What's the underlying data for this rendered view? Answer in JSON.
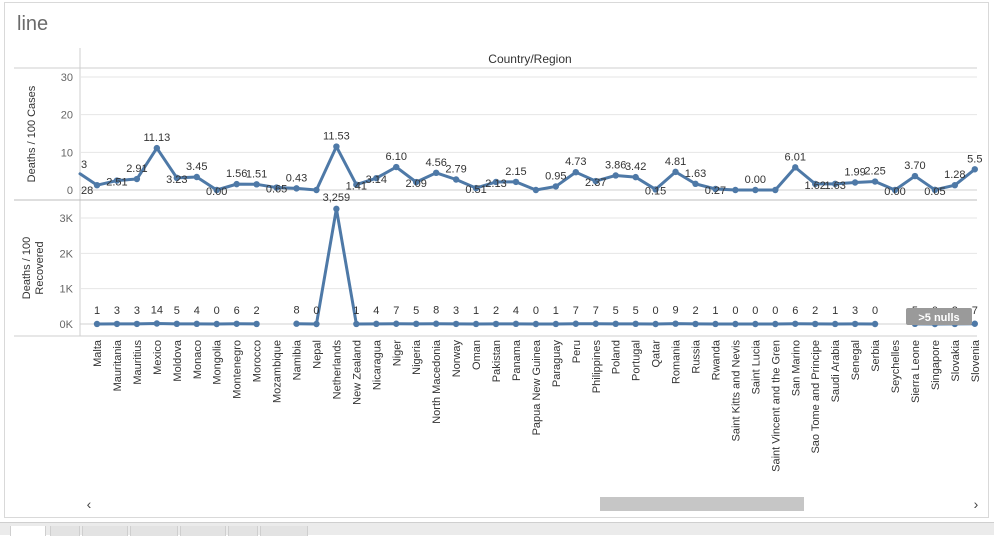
{
  "sheet_title": "line",
  "nulls_indicator": ">5 nulls",
  "colors": {
    "line": "#4e79a7",
    "grid": "#e6e6e6",
    "text": "#333333",
    "axis_text": "#666666"
  },
  "scroll_left_icon": "chevron-left-icon",
  "scroll_right_icon": "chevron-right-icon",
  "chart_data": {
    "type": "line",
    "header": "Country/Region",
    "categories": [
      "Malta",
      "Mauritania",
      "Mauritius",
      "Mexico",
      "Moldova",
      "Monaco",
      "Mongolia",
      "Montenegro",
      "Morocco",
      "Mozambique",
      "Namibia",
      "Nepal",
      "Netherlands",
      "New Zealand",
      "Nicaragua",
      "Niger",
      "Nigeria",
      "North Macedonia",
      "Norway",
      "Oman",
      "Pakistan",
      "Panama",
      "Papua New Guinea",
      "Paraguay",
      "Peru",
      "Philippines",
      "Poland",
      "Portugal",
      "Qatar",
      "Romania",
      "Russia",
      "Rwanda",
      "Saint Kitts and Nevis",
      "Saint Lucia",
      "Saint Vincent and the Gren..",
      "San Marino",
      "Sao Tome and Principe",
      "Saudi Arabia",
      "Senegal",
      "Serbia",
      "Seychelles",
      "Sierra Leone",
      "Singapore",
      "Slovakia",
      "Slovenia"
    ],
    "panes": [
      {
        "ylabel": "Deaths / 100 Cases",
        "ylim": [
          0,
          30
        ],
        "ticks": [
          0,
          10,
          20,
          30
        ],
        "tick_labels": [
          "0",
          "10",
          "20",
          "30"
        ],
        "left_edge_value": 4.3,
        "left_edge_labels": [
          "3",
          "28"
        ],
        "values": [
          1.28,
          2.51,
          2.91,
          11.13,
          3.23,
          3.45,
          0.0,
          1.56,
          1.51,
          0.65,
          0.43,
          0.0,
          11.53,
          1.41,
          3.14,
          6.1,
          2.09,
          4.56,
          2.79,
          0.51,
          2.13,
          2.15,
          0.0,
          0.95,
          4.73,
          2.37,
          3.86,
          3.42,
          0.15,
          4.81,
          1.63,
          0.27,
          0.0,
          0.0,
          0.0,
          6.01,
          1.62,
          1.63,
          1.99,
          2.25,
          0.0,
          3.7,
          0.05,
          1.28,
          5.5
        ],
        "labels": [
          "",
          "2.51",
          "2.91",
          "11.13",
          "3.23",
          "3.45",
          "0.00",
          "1.56",
          "1.51",
          "0.65",
          "0.43",
          "",
          "11.53",
          "1.41",
          "3.14",
          "6.10",
          "2.09",
          "4.56",
          "2.79",
          "0.51",
          "2.13",
          "2.15",
          "",
          "0.95",
          "4.73",
          "2.37",
          "3.86",
          "3.42",
          "0.15",
          "4.81",
          "1.63",
          "0.27",
          "",
          "0.00",
          "",
          "6.01",
          "1.62",
          "1.63",
          "1.99",
          "2.25",
          "0.00",
          "3.70",
          "0.05",
          "1.28",
          "5.5"
        ],
        "label_pos": [
          "",
          "b",
          "a",
          "a",
          "b",
          "a",
          "b",
          "a",
          "a",
          "b",
          "a",
          "",
          "a",
          "b",
          "b",
          "a",
          "b",
          "a",
          "a",
          "b",
          "b",
          "a",
          "",
          "a",
          "a",
          "b",
          "a",
          "a",
          "b",
          "a",
          "a",
          "b",
          "",
          "a",
          "",
          "a",
          "b",
          "b",
          "a",
          "a",
          "b",
          "a",
          "b",
          "a",
          "a"
        ]
      },
      {
        "ylabel": "Deaths / 100 Recovered",
        "ylim": [
          0,
          3500
        ],
        "ticks": [
          0,
          1000,
          2000,
          3000
        ],
        "tick_labels": [
          "0K",
          "1K",
          "2K",
          "3K"
        ],
        "values": [
          1,
          3,
          3,
          14,
          5,
          4,
          0,
          6,
          2,
          null,
          8,
          0,
          3259,
          1,
          4,
          7,
          5,
          8,
          3,
          1,
          2,
          4,
          0,
          1,
          7,
          7,
          5,
          5,
          0,
          9,
          2,
          1,
          0,
          0,
          0,
          6,
          2,
          1,
          3,
          0,
          null,
          5,
          0,
          2,
          7
        ],
        "labels": [
          "1",
          "3",
          "3",
          "14",
          "5",
          "4",
          "0",
          "6",
          "2",
          "",
          "8",
          "0",
          "3,259",
          "1",
          "4",
          "7",
          "5",
          "8",
          "3",
          "1",
          "2",
          "4",
          "0",
          "1",
          "7",
          "7",
          "5",
          "5",
          "0",
          "9",
          "2",
          "1",
          "0",
          "0",
          "0",
          "6",
          "2",
          "1",
          "3",
          "0",
          "",
          "5",
          "0",
          "2",
          "7"
        ]
      }
    ],
    "grid": true,
    "legend": "none"
  }
}
